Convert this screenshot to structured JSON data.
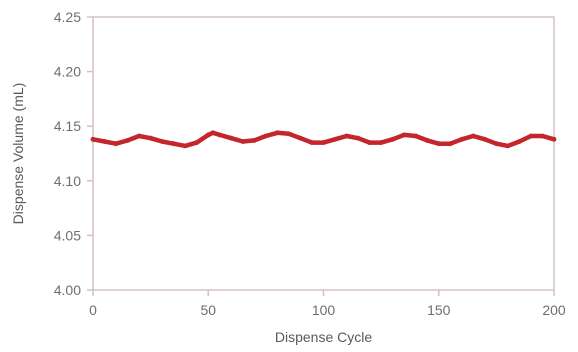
{
  "chart_data": {
    "type": "line",
    "title": "",
    "xlabel": "Dispense Cycle",
    "ylabel": "Dispense Volume (mL)",
    "xlim": [
      0,
      200
    ],
    "ylim": [
      4.0,
      4.25
    ],
    "x_ticks": [
      0,
      50,
      100,
      150,
      200
    ],
    "y_ticks": [
      4.0,
      4.05,
      4.1,
      4.15,
      4.2,
      4.25
    ],
    "x_tick_labels": [
      "0",
      "50",
      "100",
      "150",
      "200"
    ],
    "y_tick_labels": [
      "4.00",
      "4.05",
      "4.10",
      "4.15",
      "4.20",
      "4.25"
    ],
    "grid": false,
    "legend": "none",
    "colors": {
      "series": "#c4262e",
      "frame": "#d2c3bf",
      "text": "#6f6f6f"
    },
    "series": [
      {
        "x": [
          0,
          5,
          10,
          15,
          20,
          25,
          30,
          35,
          40,
          45,
          50,
          52,
          55,
          60,
          65,
          70,
          75,
          80,
          85,
          90,
          95,
          100,
          105,
          110,
          115,
          120,
          125,
          130,
          135,
          140,
          145,
          150,
          155,
          160,
          165,
          170,
          175,
          180,
          185,
          190,
          195,
          200
        ],
        "values": [
          4.138,
          4.136,
          4.134,
          4.137,
          4.141,
          4.139,
          4.136,
          4.134,
          4.132,
          4.135,
          4.142,
          4.144,
          4.142,
          4.139,
          4.136,
          4.137,
          4.141,
          4.144,
          4.143,
          4.139,
          4.135,
          4.135,
          4.138,
          4.141,
          4.139,
          4.135,
          4.135,
          4.138,
          4.142,
          4.141,
          4.137,
          4.134,
          4.134,
          4.138,
          4.141,
          4.138,
          4.134,
          4.132,
          4.136,
          4.141,
          4.141,
          4.138
        ]
      }
    ]
  }
}
